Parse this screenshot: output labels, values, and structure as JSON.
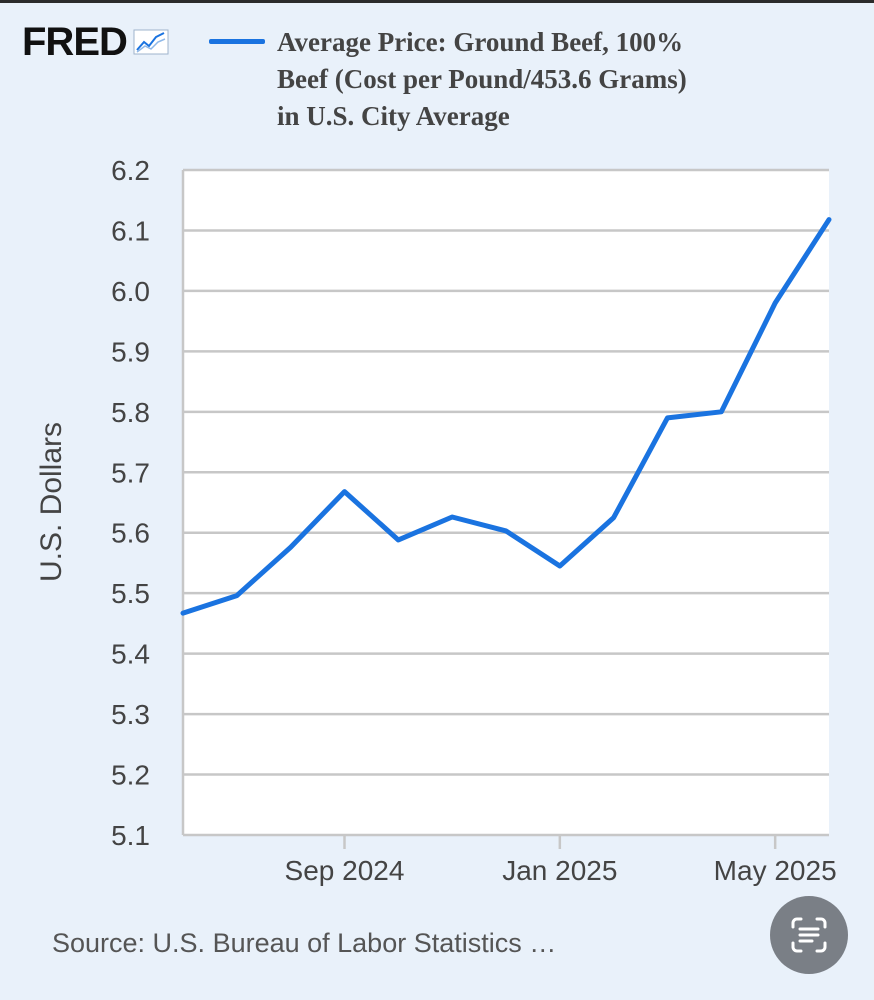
{
  "brand": {
    "logo_text": "FRED",
    "logo_icon": "line-graph-icon"
  },
  "legend": {
    "series_label_lines": [
      "Average Price: Ground Beef, 100%",
      "Beef (Cost per Pound/453.6 Grams)",
      "in U.S. City Average"
    ],
    "line_color": "#1a73e0"
  },
  "source_text": "Source: U.S. Bureau of Labor Statistics …",
  "scan_button": {
    "icon": "scan-text-icon"
  },
  "chart_data": {
    "type": "line",
    "title": "",
    "ylabel": "U.S. Dollars",
    "xlabel": "",
    "ylim": [
      5.1,
      6.2
    ],
    "y_ticks": [
      "6.2",
      "6.1",
      "6.0",
      "5.9",
      "5.8",
      "5.7",
      "5.6",
      "5.5",
      "5.4",
      "5.3",
      "5.2",
      "5.1"
    ],
    "x_tick_labels": [
      "Sep 2024",
      "Jan 2025",
      "May 2025"
    ],
    "x_ticks_at": [
      "2024-09",
      "2025-01",
      "2025-05"
    ],
    "x": [
      "2024-06",
      "2024-07",
      "2024-08",
      "2024-09",
      "2024-10",
      "2024-11",
      "2024-12",
      "2025-01",
      "2025-02",
      "2025-03",
      "2025-04",
      "2025-05",
      "2025-06"
    ],
    "series": [
      {
        "name": "Average Price: Ground Beef, 100% Beef (Cost per Pound/453.6 Grams) in U.S. City Average",
        "color": "#1a73e0",
        "values": [
          5.467,
          5.496,
          5.576,
          5.668,
          5.588,
          5.626,
          5.603,
          5.545,
          5.625,
          5.79,
          5.8,
          5.98,
          6.118
        ]
      }
    ],
    "grid": true,
    "legend_position": "top"
  }
}
